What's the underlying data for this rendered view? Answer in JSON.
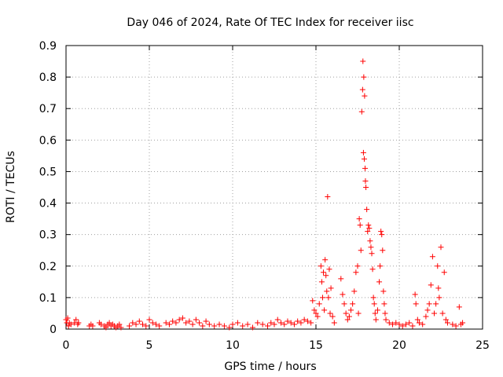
{
  "chart_data": {
    "type": "scatter",
    "title": "Day 046 of 2024, Rate Of TEC Index for receiver iisc",
    "xlabel": "GPS time / hours",
    "ylabel": "ROTI / TECUs",
    "xlim": [
      0,
      25
    ],
    "ylim": [
      0,
      0.9
    ],
    "xticks": [
      "0",
      "5",
      "10",
      "15",
      "20",
      "25"
    ],
    "yticks": [
      "0",
      "0.1",
      "0.2",
      "0.3",
      "0.4",
      "0.5",
      "0.6",
      "0.7",
      "0.8",
      "0.9"
    ],
    "grid": true,
    "marker": "+",
    "series": [
      {
        "name": "ROTI",
        "color": "#ff0000",
        "points": [
          [
            0.0,
            0.03
          ],
          [
            0.05,
            0.02
          ],
          [
            0.1,
            0.035
          ],
          [
            0.15,
            0.01
          ],
          [
            0.2,
            0.02
          ],
          [
            0.3,
            0.015
          ],
          [
            0.5,
            0.02
          ],
          [
            0.6,
            0.03
          ],
          [
            0.7,
            0.015
          ],
          [
            0.75,
            0.02
          ],
          [
            1.4,
            0.01
          ],
          [
            1.5,
            0.015
          ],
          [
            1.6,
            0.01
          ],
          [
            2.0,
            0.02
          ],
          [
            2.1,
            0.015
          ],
          [
            2.3,
            0.01
          ],
          [
            2.4,
            0.005
          ],
          [
            2.5,
            0.015
          ],
          [
            2.6,
            0.02
          ],
          [
            2.7,
            0.01
          ],
          [
            2.8,
            0.015
          ],
          [
            2.9,
            0.01
          ],
          [
            3.0,
            0.005
          ],
          [
            3.1,
            0.01
          ],
          [
            3.2,
            0.015
          ],
          [
            3.3,
            0.005
          ],
          [
            3.8,
            0.01
          ],
          [
            4.0,
            0.02
          ],
          [
            4.2,
            0.015
          ],
          [
            4.4,
            0.025
          ],
          [
            4.6,
            0.015
          ],
          [
            4.8,
            0.01
          ],
          [
            5.0,
            0.03
          ],
          [
            5.2,
            0.02
          ],
          [
            5.4,
            0.015
          ],
          [
            5.6,
            0.01
          ],
          [
            6.0,
            0.02
          ],
          [
            6.2,
            0.015
          ],
          [
            6.4,
            0.025
          ],
          [
            6.6,
            0.02
          ],
          [
            6.8,
            0.03
          ],
          [
            7.0,
            0.035
          ],
          [
            7.2,
            0.02
          ],
          [
            7.4,
            0.025
          ],
          [
            7.6,
            0.015
          ],
          [
            7.8,
            0.03
          ],
          [
            8.0,
            0.02
          ],
          [
            8.2,
            0.01
          ],
          [
            8.4,
            0.025
          ],
          [
            8.6,
            0.015
          ],
          [
            8.9,
            0.01
          ],
          [
            9.2,
            0.015
          ],
          [
            9.5,
            0.01
          ],
          [
            9.8,
            0.005
          ],
          [
            10.0,
            0.015
          ],
          [
            10.3,
            0.02
          ],
          [
            10.6,
            0.01
          ],
          [
            10.9,
            0.015
          ],
          [
            11.2,
            0.005
          ],
          [
            11.5,
            0.02
          ],
          [
            11.8,
            0.015
          ],
          [
            12.1,
            0.01
          ],
          [
            12.3,
            0.02
          ],
          [
            12.5,
            0.015
          ],
          [
            12.7,
            0.03
          ],
          [
            12.9,
            0.02
          ],
          [
            13.1,
            0.015
          ],
          [
            13.3,
            0.025
          ],
          [
            13.5,
            0.02
          ],
          [
            13.7,
            0.015
          ],
          [
            13.9,
            0.025
          ],
          [
            14.1,
            0.02
          ],
          [
            14.3,
            0.03
          ],
          [
            14.5,
            0.025
          ],
          [
            14.7,
            0.02
          ],
          [
            14.8,
            0.09
          ],
          [
            14.9,
            0.06
          ],
          [
            15.0,
            0.05
          ],
          [
            15.1,
            0.04
          ],
          [
            15.2,
            0.08
          ],
          [
            15.3,
            0.2
          ],
          [
            15.35,
            0.15
          ],
          [
            15.4,
            0.1
          ],
          [
            15.45,
            0.18
          ],
          [
            15.5,
            0.06
          ],
          [
            15.55,
            0.22
          ],
          [
            15.6,
            0.17
          ],
          [
            15.65,
            0.12
          ],
          [
            15.7,
            0.42
          ],
          [
            15.75,
            0.1
          ],
          [
            15.8,
            0.19
          ],
          [
            15.85,
            0.05
          ],
          [
            15.9,
            0.13
          ],
          [
            16.0,
            0.04
          ],
          [
            16.1,
            0.02
          ],
          [
            16.5,
            0.16
          ],
          [
            16.6,
            0.11
          ],
          [
            16.7,
            0.08
          ],
          [
            16.8,
            0.05
          ],
          [
            16.9,
            0.03
          ],
          [
            17.0,
            0.04
          ],
          [
            17.1,
            0.06
          ],
          [
            17.2,
            0.08
          ],
          [
            17.3,
            0.12
          ],
          [
            17.4,
            0.18
          ],
          [
            17.5,
            0.2
          ],
          [
            17.55,
            0.05
          ],
          [
            17.6,
            0.35
          ],
          [
            17.65,
            0.33
          ],
          [
            17.7,
            0.25
          ],
          [
            17.75,
            0.69
          ],
          [
            17.8,
            0.76
          ],
          [
            17.82,
            0.85
          ],
          [
            17.85,
            0.56
          ],
          [
            17.87,
            0.8
          ],
          [
            17.9,
            0.54
          ],
          [
            17.92,
            0.74
          ],
          [
            17.95,
            0.51
          ],
          [
            17.97,
            0.47
          ],
          [
            18.0,
            0.45
          ],
          [
            18.05,
            0.38
          ],
          [
            18.1,
            0.31
          ],
          [
            18.15,
            0.33
          ],
          [
            18.2,
            0.32
          ],
          [
            18.25,
            0.28
          ],
          [
            18.3,
            0.26
          ],
          [
            18.35,
            0.24
          ],
          [
            18.4,
            0.19
          ],
          [
            18.45,
            0.1
          ],
          [
            18.5,
            0.08
          ],
          [
            18.55,
            0.05
          ],
          [
            18.6,
            0.03
          ],
          [
            18.7,
            0.06
          ],
          [
            18.8,
            0.15
          ],
          [
            18.85,
            0.2
          ],
          [
            18.9,
            0.31
          ],
          [
            18.95,
            0.3
          ],
          [
            19.0,
            0.25
          ],
          [
            19.05,
            0.12
          ],
          [
            19.1,
            0.08
          ],
          [
            19.15,
            0.05
          ],
          [
            19.2,
            0.03
          ],
          [
            19.4,
            0.02
          ],
          [
            19.6,
            0.015
          ],
          [
            19.8,
            0.02
          ],
          [
            20.0,
            0.015
          ],
          [
            20.2,
            0.01
          ],
          [
            20.4,
            0.015
          ],
          [
            20.6,
            0.02
          ],
          [
            20.8,
            0.01
          ],
          [
            20.95,
            0.11
          ],
          [
            21.0,
            0.08
          ],
          [
            21.1,
            0.03
          ],
          [
            21.2,
            0.02
          ],
          [
            21.4,
            0.015
          ],
          [
            21.6,
            0.04
          ],
          [
            21.7,
            0.06
          ],
          [
            21.8,
            0.08
          ],
          [
            21.9,
            0.14
          ],
          [
            22.0,
            0.23
          ],
          [
            22.1,
            0.05
          ],
          [
            22.2,
            0.08
          ],
          [
            22.3,
            0.2
          ],
          [
            22.35,
            0.13
          ],
          [
            22.4,
            0.1
          ],
          [
            22.5,
            0.26
          ],
          [
            22.6,
            0.05
          ],
          [
            22.7,
            0.18
          ],
          [
            22.8,
            0.03
          ],
          [
            22.9,
            0.02
          ],
          [
            23.2,
            0.015
          ],
          [
            23.4,
            0.01
          ],
          [
            23.6,
            0.07
          ],
          [
            23.7,
            0.015
          ],
          [
            23.8,
            0.02
          ]
        ]
      }
    ]
  }
}
